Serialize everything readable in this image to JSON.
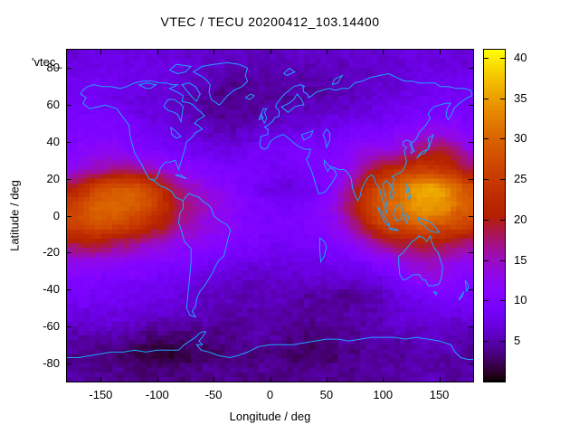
{
  "title": "VTEC / TECU 20200412_103.14400",
  "legend_text": "'vtec_",
  "axes": {
    "xlabel": "Longitude / deg",
    "ylabel": "Latitude / deg",
    "x_ticks": [
      -150,
      -100,
      -50,
      0,
      50,
      100,
      150
    ],
    "y_ticks": [
      80,
      60,
      40,
      20,
      0,
      -20,
      -40,
      -60,
      -80
    ],
    "colorbar_ticks": [
      5,
      10,
      15,
      20,
      25,
      30,
      35,
      40
    ]
  },
  "colors": {
    "coastline": "#1ea3ff",
    "border": "#000000",
    "background": "#ffffff"
  },
  "chart_data": {
    "type": "heatmap",
    "title": "VTEC / TECU 20200412_103.14400",
    "xlabel": "Longitude / deg",
    "ylabel": "Latitude / deg",
    "units": "TECU",
    "x_range": [
      -180,
      180
    ],
    "y_range": [
      -90,
      90
    ],
    "colorbar_range": [
      0,
      41
    ],
    "colorbar_ticks": [
      5,
      10,
      15,
      20,
      25,
      30,
      35,
      40
    ],
    "palette": "gnuplot black-violet-red-yellow (rgbformulae 7,5,15)",
    "grid_lons": [
      -175,
      -165,
      -155,
      -145,
      -135,
      -125,
      -115,
      -105,
      -95,
      -85,
      -75,
      -65,
      -55,
      -45,
      -35,
      -25,
      -15,
      -5,
      5,
      15,
      25,
      35,
      45,
      55,
      65,
      75,
      85,
      95,
      105,
      115,
      125,
      135,
      145,
      155,
      165,
      175
    ],
    "grid_lats": [
      85,
      75,
      65,
      55,
      45,
      35,
      25,
      15,
      5,
      -5,
      -15,
      -25,
      -35,
      -45,
      -55,
      -65,
      -75,
      -85
    ],
    "values": [
      [
        7,
        7,
        7,
        7,
        7,
        7,
        7,
        7,
        7,
        7,
        6.5,
        6.5,
        6,
        6,
        6,
        5.5,
        5.5,
        5.5,
        5.5,
        5.5,
        6,
        6,
        6,
        6,
        6,
        6.5,
        6.5,
        6.5,
        6.5,
        7,
        7,
        7,
        7,
        7,
        7,
        7
      ],
      [
        8,
        8,
        8,
        8,
        8,
        7.5,
        7.5,
        7,
        7,
        7,
        6.5,
        6,
        5.5,
        5,
        4.5,
        4.5,
        4.5,
        5,
        5,
        5,
        4.5,
        4.5,
        4.5,
        5,
        5,
        5.5,
        5.5,
        6,
        6,
        6.5,
        7,
        7,
        7.5,
        7.5,
        8,
        8
      ],
      [
        8.5,
        8.5,
        8.5,
        8,
        8,
        7.5,
        7,
        7,
        6.5,
        6,
        5.5,
        5,
        4.5,
        4,
        3.5,
        3.5,
        4,
        4.5,
        4.5,
        4.5,
        5,
        5,
        5,
        5.5,
        5.5,
        6,
        6,
        6.5,
        7,
        7,
        7.5,
        8,
        8,
        8.5,
        8.5,
        8.5
      ],
      [
        9,
        9,
        9,
        9,
        8.5,
        8,
        7.5,
        7,
        6.5,
        6,
        5.5,
        5,
        4.5,
        4,
        4,
        4,
        4.5,
        5,
        5,
        5.5,
        5.5,
        6,
        6,
        6.5,
        6.5,
        7,
        7,
        7.5,
        8,
        8.5,
        9,
        9,
        9.5,
        9.5,
        9.5,
        9
      ],
      [
        10,
        10,
        10,
        10,
        10,
        9.5,
        9,
        8.5,
        8,
        7.5,
        7,
        6.5,
        6,
        5.5,
        5.5,
        6,
        6.5,
        7,
        7,
        7.5,
        7.5,
        8,
        8,
        8.5,
        9,
        9.5,
        9.5,
        10,
        10,
        11,
        12,
        13,
        13,
        13,
        12,
        11
      ],
      [
        11,
        11.5,
        12,
        12,
        11.5,
        11,
        10.5,
        10,
        9.5,
        9,
        8.5,
        8,
        7.5,
        7.5,
        7.5,
        8,
        8.5,
        9,
        9,
        9.5,
        9.5,
        10,
        10,
        10.5,
        11,
        12,
        13,
        13,
        13,
        14,
        16,
        18,
        19,
        19,
        17,
        14
      ],
      [
        13,
        14,
        15,
        16,
        17,
        17,
        16,
        15,
        14,
        13,
        12,
        11,
        10.5,
        10,
        9.5,
        9.5,
        9,
        9,
        8.5,
        8.5,
        9,
        9.5,
        10,
        11,
        12,
        14,
        17,
        20,
        22,
        23,
        24,
        25,
        25,
        24,
        22,
        18
      ],
      [
        20,
        23,
        26,
        28,
        29,
        29,
        28,
        26,
        22,
        18,
        16,
        14,
        13,
        12,
        11,
        10,
        9,
        8,
        7.5,
        7,
        7.5,
        8,
        9,
        11,
        14,
        18,
        23,
        27,
        29,
        31,
        34,
        36,
        36,
        34,
        31,
        28
      ],
      [
        26,
        28,
        30,
        31,
        31,
        30,
        29,
        27,
        24,
        20,
        18,
        16,
        14,
        13,
        12,
        11,
        10,
        9.5,
        9,
        9,
        9.5,
        10,
        11,
        13,
        16,
        20,
        25,
        28,
        30,
        32,
        34,
        35,
        35,
        34,
        31,
        29
      ],
      [
        26,
        27,
        28,
        28,
        27,
        26,
        24,
        22,
        20,
        18,
        16,
        15,
        13,
        12.5,
        12,
        11,
        10.5,
        10,
        10,
        10,
        10,
        10.5,
        11,
        12,
        14,
        17,
        21,
        25,
        27,
        28,
        29,
        30,
        29,
        28,
        27,
        26
      ],
      [
        19,
        20,
        20,
        19,
        18,
        17,
        16,
        15,
        14,
        13,
        12.5,
        12,
        11.5,
        11,
        10.5,
        10,
        9.5,
        9,
        8.5,
        8.5,
        9,
        9,
        9.5,
        10,
        11,
        12,
        14,
        16,
        18,
        19,
        19,
        20,
        20,
        19,
        18,
        17
      ],
      [
        13,
        13,
        13,
        12.5,
        12,
        12,
        11.5,
        11,
        10.5,
        10,
        10,
        9.5,
        9,
        8.5,
        8,
        7.5,
        7.5,
        7.5,
        7.5,
        7.5,
        7.5,
        7.5,
        8,
        8,
        8.5,
        9,
        10,
        11,
        12,
        13,
        14,
        15,
        15,
        14,
        13,
        13
      ],
      [
        10,
        10,
        10,
        9.5,
        9.5,
        9,
        9,
        8.5,
        8.5,
        8,
        7.5,
        7,
        6.5,
        6.5,
        6,
        6,
        6,
        6,
        6,
        6,
        6,
        6,
        6,
        6,
        6,
        6,
        6.5,
        7,
        8,
        9,
        11,
        12,
        13,
        12,
        11,
        10
      ],
      [
        9,
        9,
        8.5,
        8.5,
        8,
        8,
        8,
        7.5,
        7.5,
        7,
        6.5,
        6,
        5.5,
        5.5,
        5,
        5,
        5,
        5.5,
        5.5,
        5,
        5,
        4.5,
        4.5,
        4,
        4,
        4,
        4.5,
        5,
        6,
        7,
        7.5,
        8,
        8.5,
        9,
        9,
        9
      ],
      [
        7,
        7,
        7,
        7,
        7,
        6.5,
        6.5,
        6,
        6,
        6,
        5.5,
        5.5,
        5,
        4.5,
        4.5,
        4.5,
        5,
        5,
        5,
        4.5,
        4.5,
        4.5,
        4.5,
        4.5,
        4.5,
        5,
        5,
        5.5,
        6,
        6.5,
        7,
        7,
        7,
        7,
        7,
        7
      ],
      [
        5,
        5,
        5,
        5,
        5,
        4.5,
        4,
        3.5,
        3,
        3,
        3,
        3.5,
        4,
        4,
        4,
        4,
        4.5,
        4.5,
        4.5,
        4,
        3.5,
        3.5,
        3.5,
        4,
        4,
        4.5,
        4.5,
        5,
        5,
        5,
        5.5,
        5.5,
        6,
        6,
        5.5,
        5
      ],
      [
        4,
        4,
        3.5,
        3.5,
        3,
        2.5,
        2,
        1.5,
        1.5,
        1.5,
        2,
        2.5,
        3,
        3,
        3,
        3.5,
        3.5,
        3.5,
        3.5,
        3,
        2.5,
        2.5,
        3,
        3,
        3.5,
        3.5,
        4,
        4,
        4,
        4.5,
        4.5,
        5,
        5,
        5,
        4.5,
        4
      ],
      [
        4.5,
        4.5,
        4.5,
        4,
        4,
        4,
        3.5,
        3.5,
        3.5,
        3.5,
        3.5,
        4,
        4,
        4,
        4,
        4,
        4,
        4,
        4,
        4,
        4,
        4,
        4,
        4,
        4,
        4.5,
        4.5,
        4.5,
        4.5,
        4.5,
        5,
        5,
        5,
        5,
        4.5,
        4.5
      ]
    ]
  }
}
